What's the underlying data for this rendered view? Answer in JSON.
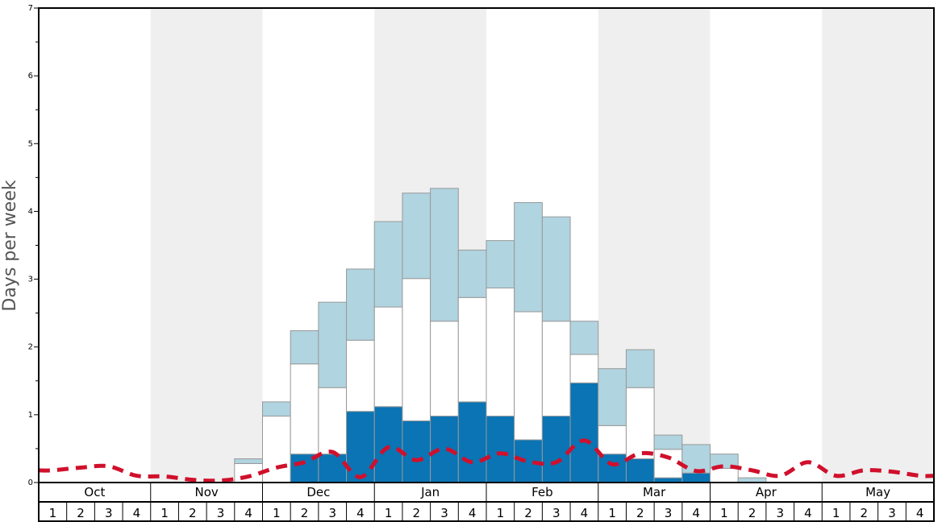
{
  "chart_data": {
    "type": "bar",
    "ylabel": "Days per week",
    "ylim": [
      0,
      7
    ],
    "yticks": [
      "0",
      "1",
      "2",
      "3",
      "4",
      "5",
      "6",
      "7"
    ],
    "months": [
      "Oct",
      "Nov",
      "Dec",
      "Jan",
      "Feb",
      "Mar",
      "Apr",
      "May"
    ],
    "weeks": [
      "1",
      "2",
      "3",
      "4"
    ],
    "colors": {
      "bottom": "#0a74b4",
      "middle": "#ffffff",
      "top": "#b0d4e0",
      "shade": "#efefef",
      "line": "#d0102c",
      "border": "#999999"
    },
    "series": [
      {
        "values": [
          0,
          0,
          0,
          0,
          0,
          0,
          0,
          0,
          0,
          0.42,
          0.42,
          1.05,
          1.12,
          0.91,
          0.98,
          1.19,
          0.98,
          0.63,
          0.98,
          1.47,
          0.42,
          0.35,
          0.07,
          0.14,
          0,
          0,
          0,
          0,
          0,
          0,
          0,
          0
        ]
      },
      {
        "values": [
          0,
          0,
          0,
          0,
          0,
          0,
          0,
          0.28,
          0.98,
          1.33,
          0.98,
          1.05,
          1.47,
          2.1,
          1.4,
          1.54,
          1.89,
          1.89,
          1.4,
          0.42,
          0.42,
          1.05,
          0.42,
          0,
          0.21,
          0,
          0,
          0,
          0,
          0,
          0,
          0
        ]
      },
      {
        "values": [
          0,
          0,
          0,
          0,
          0,
          0,
          0,
          0.07,
          0.21,
          0.49,
          1.26,
          1.05,
          1.26,
          1.26,
          1.96,
          0.7,
          0.7,
          1.61,
          1.54,
          0.49,
          0.84,
          0.56,
          0.21,
          0.42,
          0.21,
          0.07,
          0,
          0,
          0,
          0,
          0,
          0
        ]
      },
      {
        "type": "line",
        "values": [
          0.18,
          0.22,
          0.24,
          0.1,
          0.09,
          0.04,
          0.03,
          0.09,
          0.22,
          0.3,
          0.45,
          0.08,
          0.52,
          0.33,
          0.5,
          0.3,
          0.43,
          0.31,
          0.3,
          0.62,
          0.27,
          0.43,
          0.37,
          0.17,
          0.24,
          0.18,
          0.1,
          0.3,
          0.1,
          0.18,
          0.16,
          0.1
        ]
      }
    ]
  }
}
